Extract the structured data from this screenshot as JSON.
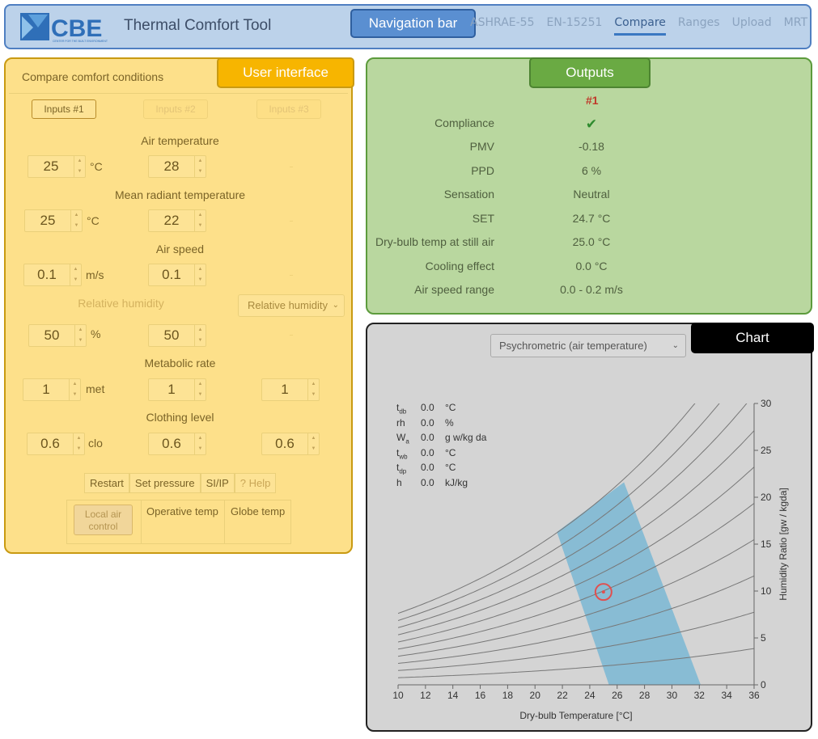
{
  "nav": {
    "logo_text": "CBE",
    "logo_subtitle": "CENTER FOR THE BUILT ENVIRONMENT",
    "title": "Thermal Comfort Tool",
    "annotation": "Navigation bar",
    "links": [
      "ASHRAE-55",
      "EN-15251",
      "Compare",
      "Ranges",
      "Upload",
      "MRT"
    ],
    "active_link": "Compare"
  },
  "user": {
    "annotation": "User interface",
    "heading": "Compare comfort conditions",
    "tabs": [
      "Inputs #1",
      "Inputs #2",
      "Inputs #3"
    ],
    "air_temp": {
      "label": "Air temperature",
      "v1": "25",
      "v2": "28",
      "unit": "°C"
    },
    "mrt": {
      "label": "Mean radiant temperature",
      "v1": "25",
      "v2": "22",
      "unit": "°C"
    },
    "air_speed": {
      "label": "Air speed",
      "v1": "0.1",
      "v2": "0.1",
      "unit": "m/s"
    },
    "rh": {
      "label": "Relative humidity",
      "v1": "50",
      "v2": "50",
      "unit": "%",
      "select": "Relative humidity"
    },
    "met": {
      "label": "Metabolic rate",
      "v1": "1",
      "v2": "1",
      "v3": "1",
      "unit": "met"
    },
    "clo": {
      "label": "Clothing level",
      "v1": "0.6",
      "v2": "0.6",
      "v3": "0.6",
      "unit": "clo"
    },
    "buttons": [
      "Restart",
      "Set pressure",
      "SI/IP",
      "? Help"
    ],
    "local_air": "Local air control",
    "operative_temp": "Operative temp",
    "globe_temp": "Globe temp"
  },
  "outputs": {
    "annotation": "Outputs",
    "column": "#1",
    "rows": [
      {
        "label": "Compliance",
        "value": "✔"
      },
      {
        "label": "PMV",
        "value": "-0.18"
      },
      {
        "label": "PPD",
        "value": "6 %"
      },
      {
        "label": "Sensation",
        "value": "Neutral"
      },
      {
        "label": "SET",
        "value": "24.7 °C"
      },
      {
        "label": "Dry-bulb temp at still air",
        "value": "25.0 °C"
      },
      {
        "label": "Cooling effect",
        "value": "0.0 °C"
      },
      {
        "label": "Air speed range",
        "value": "0.0 - 0.2 m/s"
      }
    ]
  },
  "chart": {
    "annotation": "Chart",
    "select": "Psychrometric (air temperature)",
    "readout": [
      {
        "key": "t",
        "sub": "db",
        "value": "0.0",
        "unit": "°C"
      },
      {
        "key": "rh",
        "sub": "",
        "value": "0.0",
        "unit": "%"
      },
      {
        "key": "W",
        "sub": "a",
        "value": "0.0",
        "unit": "g w/kg da"
      },
      {
        "key": "t",
        "sub": "wb",
        "value": "0.0",
        "unit": "°C"
      },
      {
        "key": "t",
        "sub": "dp",
        "value": "0.0",
        "unit": "°C"
      },
      {
        "key": "h",
        "sub": "",
        "value": "0.0",
        "unit": "kJ/kg"
      }
    ],
    "xlabel": "Dry-bulb Temperature [°C]",
    "ylabel": "Humidity Ratio [gw / kgda]"
  },
  "chart_data": {
    "type": "line",
    "xlim": [
      10,
      36
    ],
    "ylim": [
      0,
      30
    ],
    "xticks": [
      10,
      12,
      14,
      16,
      18,
      20,
      22,
      24,
      26,
      28,
      30,
      32,
      34,
      36
    ],
    "yticks": [
      0,
      5,
      10,
      15,
      20,
      25,
      30
    ],
    "rh_curves_percent": [
      10,
      20,
      30,
      40,
      50,
      60,
      70,
      80,
      90,
      100
    ],
    "comfort_zone": [
      [
        21.6,
        16.3
      ],
      [
        25.4,
        0
      ],
      [
        32.1,
        0
      ],
      [
        26.5,
        21.6
      ]
    ],
    "point": {
      "x": 25,
      "y": 9.9
    },
    "colors": {
      "zone": "#7fb9d4",
      "curves": "#777777",
      "point": "#e05050"
    }
  }
}
